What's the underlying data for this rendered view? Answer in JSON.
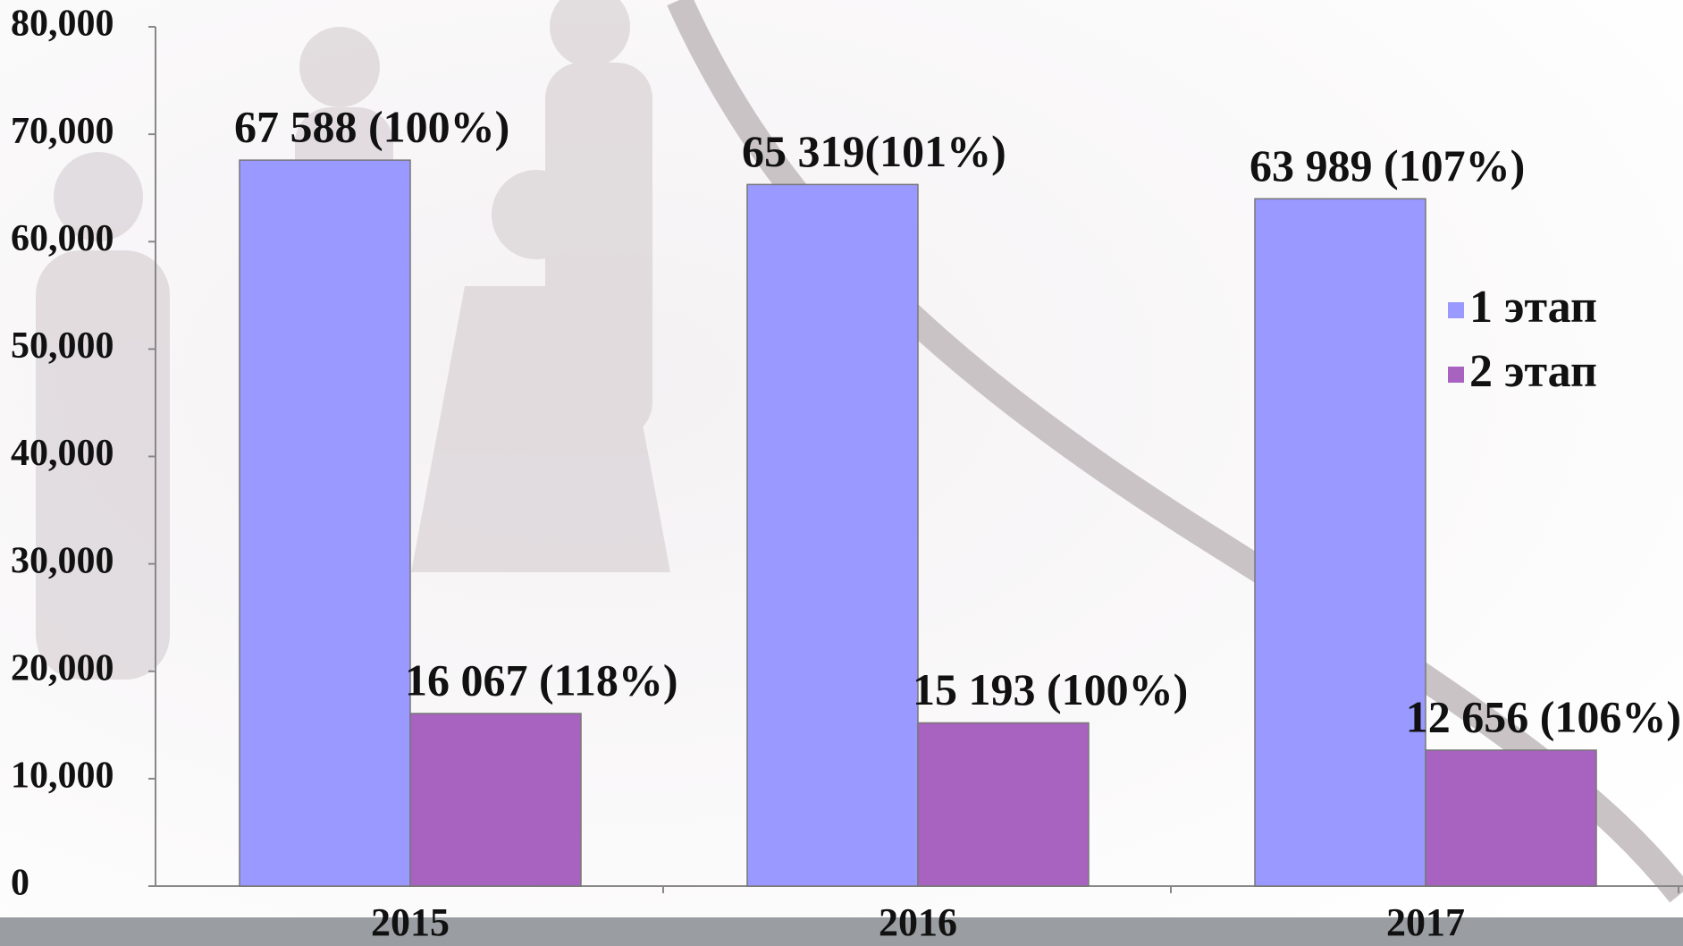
{
  "chart_data": {
    "type": "bar",
    "categories": [
      "2015",
      "2016",
      "2017"
    ],
    "series": [
      {
        "name": "1 этап",
        "color": "#9999ff",
        "values": [
          67588,
          65319,
          63989
        ],
        "value_labels": [
          "67 588 (100%)",
          "65 319(101%)",
          "63 989 (107%)"
        ]
      },
      {
        "name": "2 этап",
        "color": "#a862c0",
        "values": [
          16067,
          15193,
          12656
        ],
        "value_labels": [
          "16 067 (118%)",
          "15 193 (100%)",
          "12 656 (106%)"
        ]
      }
    ],
    "ylim": [
      0,
      80000
    ],
    "yticks": [
      0,
      {
        "value": 10000,
        "label": "10,000"
      },
      {
        "value": 20000,
        "label": "20,000"
      },
      {
        "value": 30000,
        "label": "30,000"
      },
      {
        "value": 40000,
        "label": "40,000"
      },
      {
        "value": 50000,
        "label": "50,000"
      },
      {
        "value": 60000,
        "label": "60,000"
      },
      {
        "value": 70000,
        "label": "70,000"
      },
      {
        "value": 80000,
        "label": "80,000"
      }
    ],
    "legend": "right"
  }
}
